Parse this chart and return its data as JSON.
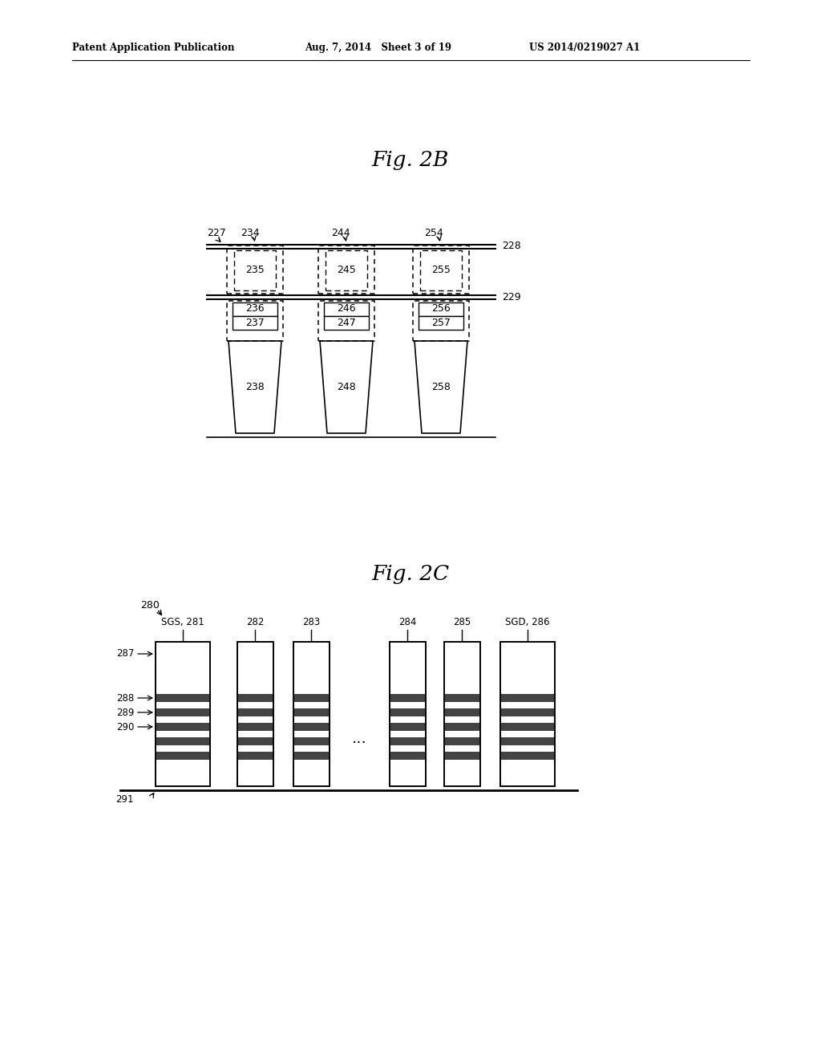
{
  "bg_color": "#ffffff",
  "header_left": "Patent Application Publication",
  "header_mid": "Aug. 7, 2014   Sheet 3 of 19",
  "header_right": "US 2014/0219027 A1",
  "fig2b_title": "Fig. 2B",
  "fig2c_title": "Fig. 2C"
}
